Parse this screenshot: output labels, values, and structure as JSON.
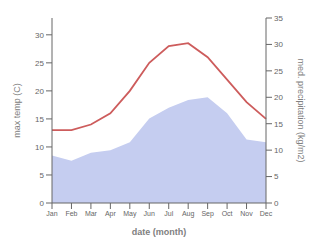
{
  "chart_data": {
    "type": "line",
    "xlabel": "date (month)",
    "ylabel": "max temp (C)",
    "y2label": "med. precipitation (kg/m2)",
    "categories": [
      "Jan",
      "Feb",
      "Mar",
      "Apr",
      "May",
      "Jun",
      "Jul",
      "Aug",
      "Sep",
      "Oct",
      "Nov",
      "Dec"
    ],
    "series": [
      {
        "type": "area",
        "color": "#c5cdf0",
        "axis": "y2",
        "values": [
          9.0,
          8.0,
          9.5,
          10.0,
          11.5,
          16.0,
          18.0,
          19.5,
          20.0,
          17.0,
          12.0,
          11.5
        ]
      },
      {
        "type": "line",
        "color": "#cd5c5c",
        "axis": "y",
        "values": [
          13.0,
          13.0,
          14.0,
          16.0,
          20.0,
          25.0,
          28.0,
          28.5,
          26.0,
          22.0,
          18.0,
          15.0
        ]
      }
    ],
    "ylim": [
      0,
      33
    ],
    "yticks": [
      0,
      5,
      10,
      15,
      20,
      25,
      30
    ],
    "y2lim": [
      0,
      35
    ],
    "y2ticks": [
      0,
      5,
      10,
      15,
      20,
      25,
      30,
      35
    ],
    "grid": false
  }
}
